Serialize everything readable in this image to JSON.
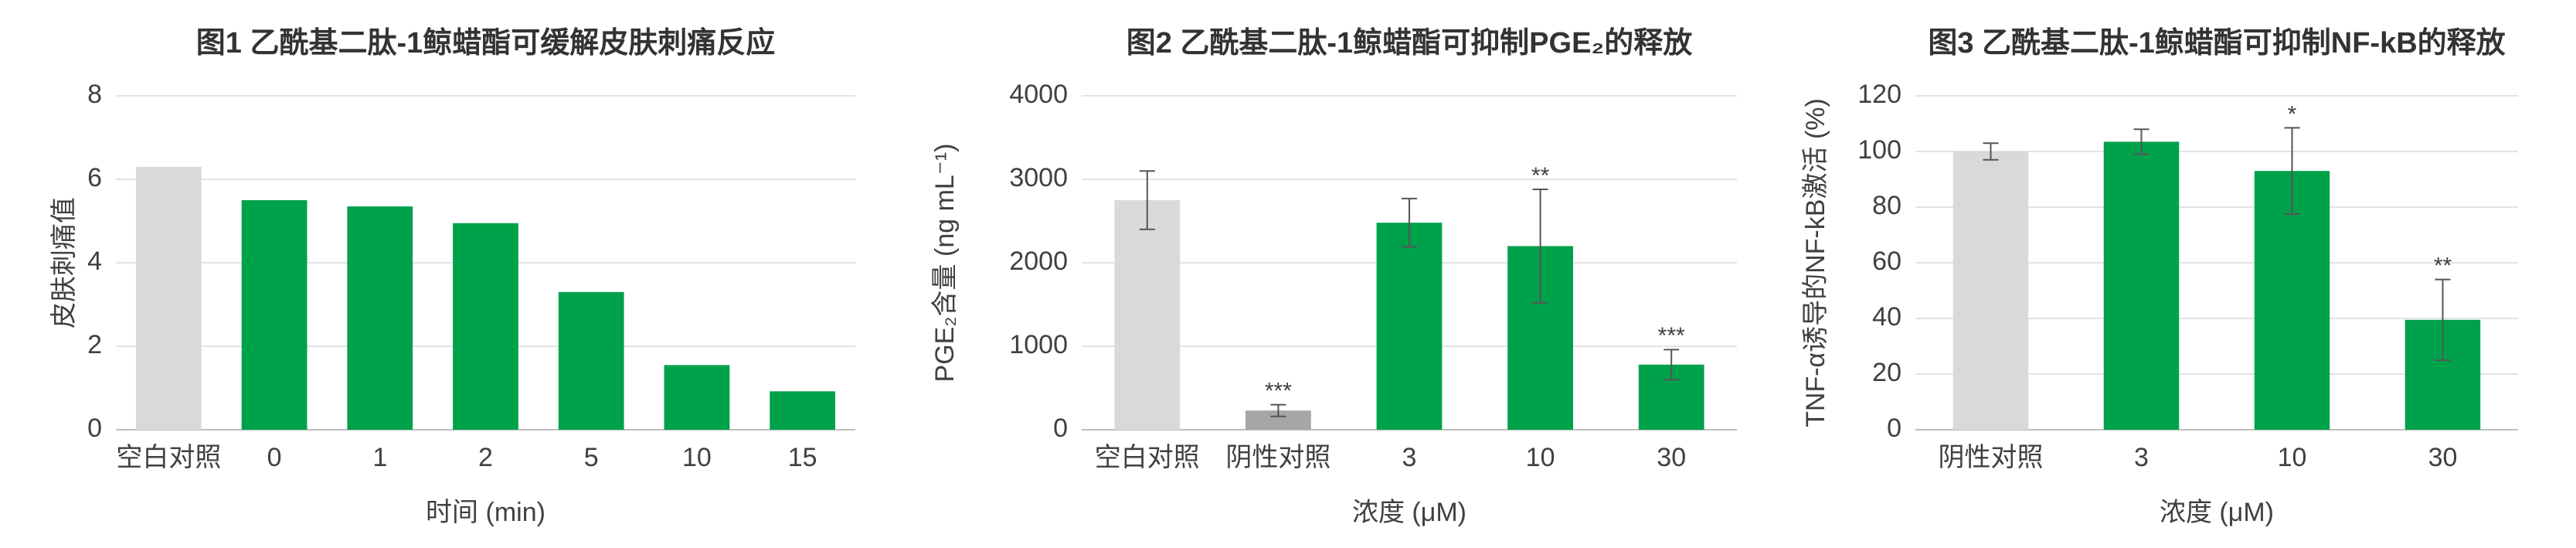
{
  "chart_data": [
    {
      "type": "bar",
      "title": "图1 乙酰基二肽-1鲸蜡酯可缓解皮肤刺痛反应",
      "y_label": "皮肤刺痛值",
      "x_label": "时间 (min)",
      "categories": [
        "空白对照",
        "0",
        "1",
        "2",
        "5",
        "10",
        "15"
      ],
      "values": [
        6.3,
        5.5,
        5.35,
        4.95,
        3.3,
        1.55,
        0.92
      ],
      "colors": [
        "#d9d9d9",
        "#00a14b",
        "#00a14b",
        "#00a14b",
        "#00a14b",
        "#00a14b",
        "#00a14b"
      ],
      "ylim": [
        0,
        8
      ],
      "yticks": [
        0,
        2,
        4,
        6,
        8
      ],
      "grid": true
    },
    {
      "type": "bar",
      "title": "图2 乙酰基二肽-1鲸蜡酯可抑制PGE₂的释放",
      "y_label": "PGE₂含量 (ng mL⁻¹)",
      "x_label": "浓度 (μM)",
      "categories": [
        "空白对照",
        "阴性对照",
        "3",
        "10",
        "30"
      ],
      "values": [
        2750,
        230,
        2480,
        2200,
        780
      ],
      "errors": [
        350,
        70,
        290,
        680,
        180
      ],
      "significance": [
        null,
        "***",
        null,
        "**",
        "***"
      ],
      "colors": [
        "#d9d9d9",
        "#a6a6a6",
        "#00a14b",
        "#00a14b",
        "#00a14b"
      ],
      "ylim": [
        0,
        4000
      ],
      "yticks": [
        0,
        1000,
        2000,
        3000,
        4000
      ],
      "grid": true
    },
    {
      "type": "bar",
      "title": "图3 乙酰基二肽-1鲸蜡酯可抑制NF-kB的释放",
      "y_label": "TNF-α诱导的NF-kB激活 (%)",
      "x_label": "浓度 (μM)",
      "categories": [
        "阴性对照",
        "3",
        "10",
        "30"
      ],
      "values": [
        100,
        103.5,
        93,
        39.5
      ],
      "errors": [
        3,
        4.5,
        15.5,
        14.5
      ],
      "significance": [
        null,
        null,
        "*",
        "**"
      ],
      "colors": [
        "#d9d9d9",
        "#00a14b",
        "#00a14b",
        "#00a14b"
      ],
      "ylim": [
        0,
        120
      ],
      "yticks": [
        0,
        20,
        40,
        60,
        80,
        100,
        120
      ],
      "grid": true
    }
  ]
}
